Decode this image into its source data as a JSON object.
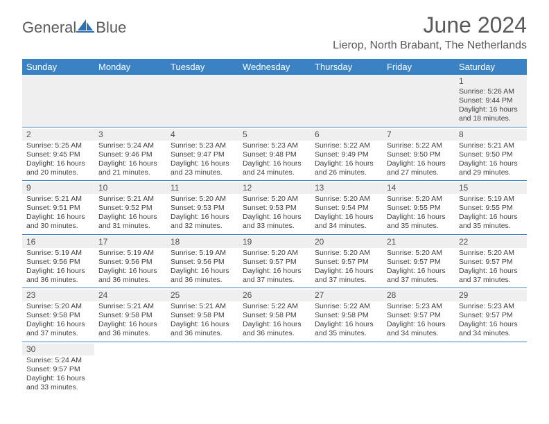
{
  "brand": {
    "name1": "General",
    "name2": "Blue"
  },
  "title": "June 2024",
  "location": "Lierop, North Brabant, The Netherlands",
  "colors": {
    "header_bg": "#3b82c4",
    "header_text": "#ffffff",
    "row_divider": "#3b82c4",
    "shade": "#efefef",
    "text": "#404040",
    "title": "#5a5a5a",
    "logo_blue": "#2f6fb0"
  },
  "weekdays": [
    "Sunday",
    "Monday",
    "Tuesday",
    "Wednesday",
    "Thursday",
    "Friday",
    "Saturday"
  ],
  "weeks": [
    [
      null,
      null,
      null,
      null,
      null,
      null,
      {
        "d": "1",
        "sr": "5:26 AM",
        "ss": "9:44 PM",
        "dl": "16 hours and 18 minutes."
      }
    ],
    [
      {
        "d": "2",
        "sr": "5:25 AM",
        "ss": "9:45 PM",
        "dl": "16 hours and 20 minutes."
      },
      {
        "d": "3",
        "sr": "5:24 AM",
        "ss": "9:46 PM",
        "dl": "16 hours and 21 minutes."
      },
      {
        "d": "4",
        "sr": "5:23 AM",
        "ss": "9:47 PM",
        "dl": "16 hours and 23 minutes."
      },
      {
        "d": "5",
        "sr": "5:23 AM",
        "ss": "9:48 PM",
        "dl": "16 hours and 24 minutes."
      },
      {
        "d": "6",
        "sr": "5:22 AM",
        "ss": "9:49 PM",
        "dl": "16 hours and 26 minutes."
      },
      {
        "d": "7",
        "sr": "5:22 AM",
        "ss": "9:50 PM",
        "dl": "16 hours and 27 minutes."
      },
      {
        "d": "8",
        "sr": "5:21 AM",
        "ss": "9:50 PM",
        "dl": "16 hours and 29 minutes."
      }
    ],
    [
      {
        "d": "9",
        "sr": "5:21 AM",
        "ss": "9:51 PM",
        "dl": "16 hours and 30 minutes."
      },
      {
        "d": "10",
        "sr": "5:21 AM",
        "ss": "9:52 PM",
        "dl": "16 hours and 31 minutes."
      },
      {
        "d": "11",
        "sr": "5:20 AM",
        "ss": "9:53 PM",
        "dl": "16 hours and 32 minutes."
      },
      {
        "d": "12",
        "sr": "5:20 AM",
        "ss": "9:53 PM",
        "dl": "16 hours and 33 minutes."
      },
      {
        "d": "13",
        "sr": "5:20 AM",
        "ss": "9:54 PM",
        "dl": "16 hours and 34 minutes."
      },
      {
        "d": "14",
        "sr": "5:20 AM",
        "ss": "9:55 PM",
        "dl": "16 hours and 35 minutes."
      },
      {
        "d": "15",
        "sr": "5:19 AM",
        "ss": "9:55 PM",
        "dl": "16 hours and 35 minutes."
      }
    ],
    [
      {
        "d": "16",
        "sr": "5:19 AM",
        "ss": "9:56 PM",
        "dl": "16 hours and 36 minutes."
      },
      {
        "d": "17",
        "sr": "5:19 AM",
        "ss": "9:56 PM",
        "dl": "16 hours and 36 minutes."
      },
      {
        "d": "18",
        "sr": "5:19 AM",
        "ss": "9:56 PM",
        "dl": "16 hours and 36 minutes."
      },
      {
        "d": "19",
        "sr": "5:20 AM",
        "ss": "9:57 PM",
        "dl": "16 hours and 37 minutes."
      },
      {
        "d": "20",
        "sr": "5:20 AM",
        "ss": "9:57 PM",
        "dl": "16 hours and 37 minutes."
      },
      {
        "d": "21",
        "sr": "5:20 AM",
        "ss": "9:57 PM",
        "dl": "16 hours and 37 minutes."
      },
      {
        "d": "22",
        "sr": "5:20 AM",
        "ss": "9:57 PM",
        "dl": "16 hours and 37 minutes."
      }
    ],
    [
      {
        "d": "23",
        "sr": "5:20 AM",
        "ss": "9:58 PM",
        "dl": "16 hours and 37 minutes."
      },
      {
        "d": "24",
        "sr": "5:21 AM",
        "ss": "9:58 PM",
        "dl": "16 hours and 36 minutes."
      },
      {
        "d": "25",
        "sr": "5:21 AM",
        "ss": "9:58 PM",
        "dl": "16 hours and 36 minutes."
      },
      {
        "d": "26",
        "sr": "5:22 AM",
        "ss": "9:58 PM",
        "dl": "16 hours and 36 minutes."
      },
      {
        "d": "27",
        "sr": "5:22 AM",
        "ss": "9:58 PM",
        "dl": "16 hours and 35 minutes."
      },
      {
        "d": "28",
        "sr": "5:23 AM",
        "ss": "9:57 PM",
        "dl": "16 hours and 34 minutes."
      },
      {
        "d": "29",
        "sr": "5:23 AM",
        "ss": "9:57 PM",
        "dl": "16 hours and 34 minutes."
      }
    ],
    [
      {
        "d": "30",
        "sr": "5:24 AM",
        "ss": "9:57 PM",
        "dl": "16 hours and 33 minutes."
      },
      null,
      null,
      null,
      null,
      null,
      null
    ]
  ],
  "labels": {
    "sunrise": "Sunrise: ",
    "sunset": "Sunset: ",
    "daylight": "Daylight: "
  }
}
